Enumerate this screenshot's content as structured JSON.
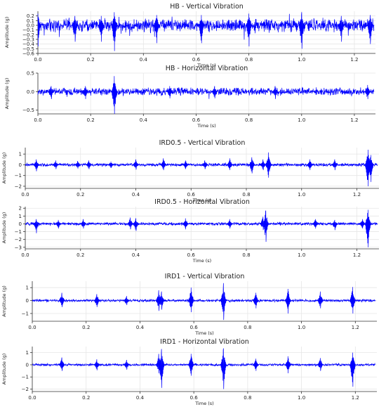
{
  "chart_data": [
    {
      "type": "line",
      "title": "HB - Vertical Vibration",
      "xlabel": "Time (s)",
      "ylabel": "Amplitude (g)",
      "xlim": [
        0,
        1.28
      ],
      "ylim": [
        -0.6,
        0.3
      ],
      "xticks": [
        0.0,
        0.2,
        0.4,
        0.6,
        0.8,
        1.0,
        1.2
      ],
      "yticks": [
        0.2,
        0.1,
        0.0,
        -0.1,
        -0.2,
        -0.3,
        -0.4,
        -0.5,
        -0.6
      ],
      "xtick_labels": [
        "0.0",
        "0.2",
        "0.4",
        "0.6",
        "0.8",
        "1.0",
        "1.2"
      ],
      "ytick_labels": [
        "0.2",
        "0.1",
        "0.0",
        "−0.1",
        "−0.2",
        "−0.3",
        "−0.4",
        "−0.5",
        "−0.6"
      ],
      "grid": true,
      "color": "#0000ff",
      "series": [
        {
          "kind": "noise",
          "noise_amplitude": 0.08,
          "spikes": [
            {
              "t": 0.0,
              "hi": 0.25,
              "lo": -0.45
            },
            {
              "t": 0.14,
              "hi": 0.2,
              "lo": -0.35
            },
            {
              "t": 0.24,
              "hi": 0.2,
              "lo": -0.35
            },
            {
              "t": 0.29,
              "hi": 0.28,
              "lo": -0.55
            },
            {
              "t": 0.45,
              "hi": 0.22,
              "lo": -0.38
            },
            {
              "t": 0.62,
              "hi": 0.22,
              "lo": -0.38
            },
            {
              "t": 0.8,
              "hi": 0.25,
              "lo": -0.45
            },
            {
              "t": 1.0,
              "hi": 0.28,
              "lo": -0.5
            },
            {
              "t": 1.15,
              "hi": 0.2,
              "lo": -0.35
            },
            {
              "t": 1.26,
              "hi": 0.22,
              "lo": -0.4
            }
          ]
        }
      ]
    },
    {
      "type": "line",
      "title": "HB - Horizontal Vibration",
      "xlabel": "Time (s)",
      "ylabel": "Amplitude (g)",
      "xlim": [
        0,
        1.28
      ],
      "ylim": [
        -0.6,
        0.5
      ],
      "xticks": [
        0.0,
        0.2,
        0.4,
        0.6,
        0.8,
        1.0,
        1.2
      ],
      "yticks": [
        0.5,
        0.0,
        -0.5
      ],
      "xtick_labels": [
        "0.0",
        "0.2",
        "0.4",
        "0.6",
        "0.8",
        "1.0",
        "1.2"
      ],
      "ytick_labels": [
        "0.5",
        "0.0",
        "−0.5"
      ],
      "grid": true,
      "color": "#0000ff",
      "series": [
        {
          "kind": "noise",
          "noise_amplitude": 0.06,
          "spikes": [
            {
              "t": 0.05,
              "hi": 0.15,
              "lo": -0.2
            },
            {
              "t": 0.18,
              "hi": 0.15,
              "lo": -0.2
            },
            {
              "t": 0.29,
              "hi": 0.42,
              "lo": -0.65
            },
            {
              "t": 0.5,
              "hi": 0.15,
              "lo": -0.18
            },
            {
              "t": 0.67,
              "hi": 0.15,
              "lo": -0.18
            },
            {
              "t": 0.9,
              "hi": 0.15,
              "lo": -0.2
            },
            {
              "t": 1.25,
              "hi": 0.18,
              "lo": -0.2
            }
          ]
        }
      ]
    },
    {
      "type": "line",
      "title": "IRD0.5 - Vertical Vibration",
      "xlabel": "Time (s)",
      "ylabel": "Amplitude (g)",
      "xlim": [
        0,
        1.28
      ],
      "ylim": [
        -2.2,
        1.6
      ],
      "xticks": [
        0.0,
        0.2,
        0.4,
        0.6,
        0.8,
        1.0,
        1.2
      ],
      "yticks": [
        1,
        0,
        -1,
        -2
      ],
      "xtick_labels": [
        "0.0",
        "0.2",
        "0.4",
        "0.6",
        "0.8",
        "1.0",
        "1.2"
      ],
      "ytick_labels": [
        "1",
        "0",
        "−1",
        "−2"
      ],
      "grid": true,
      "color": "#0000ff",
      "series": [
        {
          "kind": "impulses",
          "noise_amplitude": 0.12,
          "spikes": [
            {
              "t": 0.04,
              "hi": 0.5,
              "lo": -0.6
            },
            {
              "t": 0.11,
              "hi": 0.4,
              "lo": -0.4
            },
            {
              "t": 0.19,
              "hi": 0.35,
              "lo": -0.35
            },
            {
              "t": 0.23,
              "hi": 0.4,
              "lo": -0.4
            },
            {
              "t": 0.31,
              "hi": 0.3,
              "lo": -0.3
            },
            {
              "t": 0.4,
              "hi": 0.5,
              "lo": -0.45
            },
            {
              "t": 0.5,
              "hi": 0.6,
              "lo": -0.5
            },
            {
              "t": 0.58,
              "hi": 0.4,
              "lo": -0.4
            },
            {
              "t": 0.65,
              "hi": 0.4,
              "lo": -0.4
            },
            {
              "t": 0.74,
              "hi": 0.6,
              "lo": -0.5
            },
            {
              "t": 0.82,
              "hi": 0.7,
              "lo": -0.8
            },
            {
              "t": 0.86,
              "hi": 0.5,
              "lo": -0.5
            },
            {
              "t": 0.88,
              "hi": 1.15,
              "lo": -1.2
            },
            {
              "t": 1.03,
              "hi": 0.5,
              "lo": -0.5
            },
            {
              "t": 1.12,
              "hi": 0.5,
              "lo": -0.5
            },
            {
              "t": 1.24,
              "hi": 1.4,
              "lo": -2.0
            },
            {
              "t": 1.25,
              "hi": 0.9,
              "lo": -1.6
            }
          ]
        }
      ]
    },
    {
      "type": "line",
      "title": "IRD0.5 - Horizontal Vibration",
      "xlabel": "Time (s)",
      "ylabel": "Amplitude (g)",
      "xlim": [
        0,
        1.28
      ],
      "ylim": [
        -3.2,
        2.2
      ],
      "xticks": [
        0.0,
        0.2,
        0.4,
        0.6,
        0.8,
        1.0,
        1.2
      ],
      "yticks": [
        2,
        1,
        0,
        -1,
        -2,
        -3
      ],
      "xtick_labels": [
        "0.0",
        "0.2",
        "0.4",
        "0.6",
        "0.8",
        "1.0",
        "1.2"
      ],
      "ytick_labels": [
        "2",
        "1",
        "0",
        "−1",
        "−2",
        "−3"
      ],
      "grid": true,
      "color": "#0000ff",
      "series": [
        {
          "kind": "impulses",
          "noise_amplitude": 0.15,
          "spikes": [
            {
              "t": 0.04,
              "hi": 0.6,
              "lo": -1.2
            },
            {
              "t": 0.12,
              "hi": 0.5,
              "lo": -0.6
            },
            {
              "t": 0.21,
              "hi": 0.6,
              "lo": -0.6
            },
            {
              "t": 0.38,
              "hi": 0.8,
              "lo": -0.7
            },
            {
              "t": 0.4,
              "hi": 0.7,
              "lo": -0.9
            },
            {
              "t": 0.58,
              "hi": 0.7,
              "lo": -0.7
            },
            {
              "t": 0.74,
              "hi": 0.6,
              "lo": -0.6
            },
            {
              "t": 0.86,
              "hi": 0.9,
              "lo": -0.8
            },
            {
              "t": 0.87,
              "hi": 1.7,
              "lo": -2.3
            },
            {
              "t": 1.05,
              "hi": 0.6,
              "lo": -0.6
            },
            {
              "t": 1.12,
              "hi": 0.5,
              "lo": -0.8
            },
            {
              "t": 1.22,
              "hi": 0.6,
              "lo": -0.6
            },
            {
              "t": 1.24,
              "hi": 1.8,
              "lo": -3.0
            }
          ]
        }
      ]
    },
    {
      "type": "line",
      "title": "IRD1 - Vertical Vibration",
      "xlabel": "Time (s)",
      "ylabel": "Amplitude (g)",
      "xlim": [
        0,
        1.28
      ],
      "ylim": [
        -1.6,
        1.5
      ],
      "xticks": [
        0.0,
        0.2,
        0.4,
        0.6,
        0.8,
        1.0,
        1.2
      ],
      "yticks": [
        1,
        0,
        -1
      ],
      "xtick_labels": [
        "0.0",
        "0.2",
        "0.4",
        "0.6",
        "0.8",
        "1.0",
        "1.2"
      ],
      "ytick_labels": [
        "1",
        "0",
        "−1"
      ],
      "grid": true,
      "color": "#0000ff",
      "series": [
        {
          "kind": "impulses",
          "noise_amplitude": 0.08,
          "spikes": [
            {
              "t": 0.11,
              "hi": 0.6,
              "lo": -0.5
            },
            {
              "t": 0.24,
              "hi": 0.5,
              "lo": -0.5
            },
            {
              "t": 0.35,
              "hi": 0.35,
              "lo": -0.35
            },
            {
              "t": 0.47,
              "hi": 0.8,
              "lo": -0.8
            },
            {
              "t": 0.48,
              "hi": 0.7,
              "lo": -0.7
            },
            {
              "t": 0.59,
              "hi": 1.0,
              "lo": -0.9
            },
            {
              "t": 0.71,
              "hi": 1.35,
              "lo": -1.5
            },
            {
              "t": 0.83,
              "hi": 0.6,
              "lo": -0.6
            },
            {
              "t": 0.95,
              "hi": 0.9,
              "lo": -1.0
            },
            {
              "t": 1.07,
              "hi": 0.7,
              "lo": -0.6
            },
            {
              "t": 1.19,
              "hi": 1.05,
              "lo": -1.0
            }
          ]
        }
      ]
    },
    {
      "type": "line",
      "title": "IRD1 - Horizontal Vibration",
      "xlabel": "Time (s)",
      "ylabel": "Amplitude (g)",
      "xlim": [
        0,
        1.28
      ],
      "ylim": [
        -2.2,
        1.5
      ],
      "xticks": [
        0.0,
        0.2,
        0.4,
        0.6,
        0.8,
        1.0,
        1.2
      ],
      "yticks": [
        1,
        0,
        -1,
        -2
      ],
      "xtick_labels": [
        "0.0",
        "0.2",
        "0.4",
        "0.6",
        "0.8",
        "1.0",
        "1.2"
      ],
      "ytick_labels": [
        "1",
        "0",
        "−1",
        "−2"
      ],
      "grid": true,
      "color": "#0000ff",
      "series": [
        {
          "kind": "impulses",
          "noise_amplitude": 0.08,
          "spikes": [
            {
              "t": 0.11,
              "hi": 0.6,
              "lo": -0.5
            },
            {
              "t": 0.24,
              "hi": 0.45,
              "lo": -0.45
            },
            {
              "t": 0.35,
              "hi": 0.4,
              "lo": -0.4
            },
            {
              "t": 0.47,
              "hi": 0.9,
              "lo": -0.7
            },
            {
              "t": 0.48,
              "hi": 1.3,
              "lo": -1.9
            },
            {
              "t": 0.59,
              "hi": 0.9,
              "lo": -0.9
            },
            {
              "t": 0.71,
              "hi": 1.35,
              "lo": -2.0
            },
            {
              "t": 0.83,
              "hi": 0.5,
              "lo": -0.5
            },
            {
              "t": 0.95,
              "hi": 0.7,
              "lo": -0.7
            },
            {
              "t": 1.07,
              "hi": 0.55,
              "lo": -0.5
            },
            {
              "t": 1.19,
              "hi": 1.0,
              "lo": -1.8
            }
          ]
        }
      ]
    }
  ]
}
